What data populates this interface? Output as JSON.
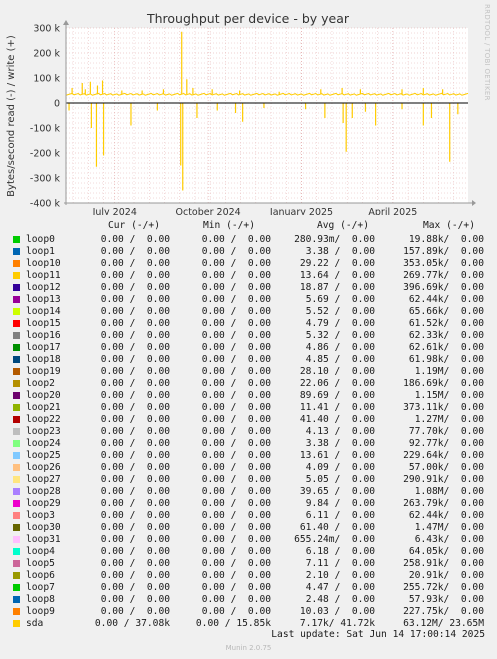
{
  "chart_data": {
    "type": "line",
    "title": "Throughput per device - by year",
    "ylabel": "Bytes/second read (-) / write (+)",
    "ylim": [
      -400000,
      300000
    ],
    "yticks": [
      {
        "value": 300000,
        "label": "300 k"
      },
      {
        "value": 200000,
        "label": "200 k"
      },
      {
        "value": 100000,
        "label": "100 k"
      },
      {
        "value": 0,
        "label": "0"
      },
      {
        "value": -100000,
        "label": "-100 k"
      },
      {
        "value": -200000,
        "label": "-200 k"
      },
      {
        "value": -300000,
        "label": "-300 k"
      },
      {
        "value": -400000,
        "label": "-400 k"
      }
    ],
    "xlim": [
      "2024-05-14",
      "2025-06-14"
    ],
    "xticks": [
      {
        "value": "2024-07-01",
        "label": "July 2024"
      },
      {
        "value": "2024-10-01",
        "label": "October 2024"
      },
      {
        "value": "2025-01-01",
        "label": "January 2025"
      },
      {
        "value": "2025-04-01",
        "label": "April 2025"
      }
    ],
    "grid": true,
    "series": [
      {
        "name": "sda",
        "color": "#ffcc00",
        "write_baseline": 35000,
        "write_spikes": [
          {
            "date": "2024-05-20",
            "value": 60000
          },
          {
            "date": "2024-05-30",
            "value": 80000
          },
          {
            "date": "2024-06-02",
            "value": 55000
          },
          {
            "date": "2024-06-07",
            "value": 85000
          },
          {
            "date": "2024-06-14",
            "value": 70000
          },
          {
            "date": "2024-06-19",
            "value": 90000
          },
          {
            "date": "2024-07-08",
            "value": 50000
          },
          {
            "date": "2024-07-28",
            "value": 50000
          },
          {
            "date": "2024-08-18",
            "value": 55000
          },
          {
            "date": "2024-09-05",
            "value": 285000
          },
          {
            "date": "2024-09-10",
            "value": 95000
          },
          {
            "date": "2024-09-16",
            "value": 60000
          },
          {
            "date": "2024-10-05",
            "value": 55000
          },
          {
            "date": "2024-11-01",
            "value": 50000
          },
          {
            "date": "2024-12-10",
            "value": 45000
          },
          {
            "date": "2025-01-20",
            "value": 55000
          },
          {
            "date": "2025-02-10",
            "value": 60000
          },
          {
            "date": "2025-02-28",
            "value": 55000
          },
          {
            "date": "2025-04-10",
            "value": 55000
          },
          {
            "date": "2025-05-01",
            "value": 60000
          },
          {
            "date": "2025-05-20",
            "value": 55000
          }
        ],
        "read_spikes": [
          {
            "date": "2024-05-17",
            "value": -30000
          },
          {
            "date": "2024-06-08",
            "value": -100000
          },
          {
            "date": "2024-06-13",
            "value": -255000
          },
          {
            "date": "2024-06-20",
            "value": -210000
          },
          {
            "date": "2024-07-17",
            "value": -90000
          },
          {
            "date": "2024-08-12",
            "value": -30000
          },
          {
            "date": "2024-09-04",
            "value": -250000
          },
          {
            "date": "2024-09-06",
            "value": -350000
          },
          {
            "date": "2024-09-20",
            "value": -60000
          },
          {
            "date": "2024-10-10",
            "value": -30000
          },
          {
            "date": "2024-10-28",
            "value": -40000
          },
          {
            "date": "2024-11-04",
            "value": -75000
          },
          {
            "date": "2024-11-25",
            "value": -20000
          },
          {
            "date": "2025-01-05",
            "value": -25000
          },
          {
            "date": "2025-01-24",
            "value": -60000
          },
          {
            "date": "2025-02-11",
            "value": -80000
          },
          {
            "date": "2025-02-14",
            "value": -195000
          },
          {
            "date": "2025-02-20",
            "value": -60000
          },
          {
            "date": "2025-03-05",
            "value": -35000
          },
          {
            "date": "2025-03-15",
            "value": -90000
          },
          {
            "date": "2025-04-10",
            "value": -25000
          },
          {
            "date": "2025-05-01",
            "value": -90000
          },
          {
            "date": "2025-05-09",
            "value": -60000
          },
          {
            "date": "2025-05-27",
            "value": -235000
          },
          {
            "date": "2025-06-04",
            "value": -45000
          }
        ]
      }
    ]
  },
  "side_label": "RRDTOOL / TOBI OETIKER",
  "legend": {
    "headers": {
      "cur": "Cur (-/+)",
      "min": "Min (-/+)",
      "avg": "Avg (-/+)",
      "max": "Max (-/+)"
    },
    "rows": [
      {
        "name": "loop0",
        "color": "#00cc00",
        "cur": "0.00 /  0.00",
        "min": "0.00 /  0.00",
        "avg": "280.93m/  0.00",
        "max": "19.88k/  0.00"
      },
      {
        "name": "loop1",
        "color": "#0066b3",
        "cur": "0.00 /  0.00",
        "min": "0.00 /  0.00",
        "avg": "3.38 /  0.00",
        "max": "157.89k/  0.00"
      },
      {
        "name": "loop10",
        "color": "#ff8000",
        "cur": "0.00 /  0.00",
        "min": "0.00 /  0.00",
        "avg": "29.22 /  0.00",
        "max": "353.05k/  0.00"
      },
      {
        "name": "loop11",
        "color": "#ffcc00",
        "cur": "0.00 /  0.00",
        "min": "0.00 /  0.00",
        "avg": "13.64 /  0.00",
        "max": "269.77k/  0.00"
      },
      {
        "name": "loop12",
        "color": "#330099",
        "cur": "0.00 /  0.00",
        "min": "0.00 /  0.00",
        "avg": "18.87 /  0.00",
        "max": "396.69k/  0.00"
      },
      {
        "name": "loop13",
        "color": "#990099",
        "cur": "0.00 /  0.00",
        "min": "0.00 /  0.00",
        "avg": "5.69 /  0.00",
        "max": "62.44k/  0.00"
      },
      {
        "name": "loop14",
        "color": "#ccff00",
        "cur": "0.00 /  0.00",
        "min": "0.00 /  0.00",
        "avg": "5.52 /  0.00",
        "max": "65.66k/  0.00"
      },
      {
        "name": "loop15",
        "color": "#ff0000",
        "cur": "0.00 /  0.00",
        "min": "0.00 /  0.00",
        "avg": "4.79 /  0.00",
        "max": "61.52k/  0.00"
      },
      {
        "name": "loop16",
        "color": "#808080",
        "cur": "0.00 /  0.00",
        "min": "0.00 /  0.00",
        "avg": "5.32 /  0.00",
        "max": "62.33k/  0.00"
      },
      {
        "name": "loop17",
        "color": "#008f00",
        "cur": "0.00 /  0.00",
        "min": "0.00 /  0.00",
        "avg": "4.86 /  0.00",
        "max": "62.61k/  0.00"
      },
      {
        "name": "loop18",
        "color": "#00487d",
        "cur": "0.00 /  0.00",
        "min": "0.00 /  0.00",
        "avg": "4.85 /  0.00",
        "max": "61.98k/  0.00"
      },
      {
        "name": "loop19",
        "color": "#b35a00",
        "cur": "0.00 /  0.00",
        "min": "0.00 /  0.00",
        "avg": "28.10 /  0.00",
        "max": "1.19M/  0.00"
      },
      {
        "name": "loop2",
        "color": "#b38f00",
        "cur": "0.00 /  0.00",
        "min": "0.00 /  0.00",
        "avg": "22.06 /  0.00",
        "max": "186.69k/  0.00"
      },
      {
        "name": "loop20",
        "color": "#6b006b",
        "cur": "0.00 /  0.00",
        "min": "0.00 /  0.00",
        "avg": "89.69 /  0.00",
        "max": "1.15M/  0.00"
      },
      {
        "name": "loop21",
        "color": "#8fb300",
        "cur": "0.00 /  0.00",
        "min": "0.00 /  0.00",
        "avg": "11.41 /  0.00",
        "max": "373.11k/  0.00"
      },
      {
        "name": "loop22",
        "color": "#b30000",
        "cur": "0.00 /  0.00",
        "min": "0.00 /  0.00",
        "avg": "41.40 /  0.00",
        "max": "1.27M/  0.00"
      },
      {
        "name": "loop23",
        "color": "#bebebe",
        "cur": "0.00 /  0.00",
        "min": "0.00 /  0.00",
        "avg": "4.13 /  0.00",
        "max": "77.70k/  0.00"
      },
      {
        "name": "loop24",
        "color": "#80ff80",
        "cur": "0.00 /  0.00",
        "min": "0.00 /  0.00",
        "avg": "3.38 /  0.00",
        "max": "92.77k/  0.00"
      },
      {
        "name": "loop25",
        "color": "#80c9ff",
        "cur": "0.00 /  0.00",
        "min": "0.00 /  0.00",
        "avg": "13.61 /  0.00",
        "max": "229.64k/  0.00"
      },
      {
        "name": "loop26",
        "color": "#ffc080",
        "cur": "0.00 /  0.00",
        "min": "0.00 /  0.00",
        "avg": "4.09 /  0.00",
        "max": "57.00k/  0.00"
      },
      {
        "name": "loop27",
        "color": "#ffe680",
        "cur": "0.00 /  0.00",
        "min": "0.00 /  0.00",
        "avg": "5.05 /  0.00",
        "max": "290.91k/  0.00"
      },
      {
        "name": "loop28",
        "color": "#aa80ff",
        "cur": "0.00 /  0.00",
        "min": "0.00 /  0.00",
        "avg": "39.65 /  0.00",
        "max": "1.08M/  0.00"
      },
      {
        "name": "loop29",
        "color": "#ee00cc",
        "cur": "0.00 /  0.00",
        "min": "0.00 /  0.00",
        "avg": "9.84 /  0.00",
        "max": "263.79k/  0.00"
      },
      {
        "name": "loop3",
        "color": "#ff8080",
        "cur": "0.00 /  0.00",
        "min": "0.00 /  0.00",
        "avg": "6.11 /  0.00",
        "max": "62.44k/  0.00"
      },
      {
        "name": "loop30",
        "color": "#666600",
        "cur": "0.00 /  0.00",
        "min": "0.00 /  0.00",
        "avg": "61.40 /  0.00",
        "max": "1.47M/  0.00"
      },
      {
        "name": "loop31",
        "color": "#ffbfff",
        "cur": "0.00 /  0.00",
        "min": "0.00 /  0.00",
        "avg": "655.24m/  0.00",
        "max": "6.43k/  0.00"
      },
      {
        "name": "loop4",
        "color": "#00ffcc",
        "cur": "0.00 /  0.00",
        "min": "0.00 /  0.00",
        "avg": "6.18 /  0.00",
        "max": "64.05k/  0.00"
      },
      {
        "name": "loop5",
        "color": "#cc6699",
        "cur": "0.00 /  0.00",
        "min": "0.00 /  0.00",
        "avg": "7.11 /  0.00",
        "max": "258.91k/  0.00"
      },
      {
        "name": "loop6",
        "color": "#999900",
        "cur": "0.00 /  0.00",
        "min": "0.00 /  0.00",
        "avg": "2.10 /  0.00",
        "max": "20.91k/  0.00"
      },
      {
        "name": "loop7",
        "color": "#00cc00",
        "cur": "0.00 /  0.00",
        "min": "0.00 /  0.00",
        "avg": "4.47 /  0.00",
        "max": "255.72k/  0.00"
      },
      {
        "name": "loop8",
        "color": "#0066b3",
        "cur": "0.00 /  0.00",
        "min": "0.00 /  0.00",
        "avg": "2.48 /  0.00",
        "max": "57.93k/  0.00"
      },
      {
        "name": "loop9",
        "color": "#ff8000",
        "cur": "0.00 /  0.00",
        "min": "0.00 /  0.00",
        "avg": "10.03 /  0.00",
        "max": "227.75k/  0.00"
      },
      {
        "name": "sda",
        "color": "#ffcc00",
        "cur": "0.00 / 37.08k",
        "min": "0.00 / 15.85k",
        "avg": "7.17k/ 41.72k",
        "max": "63.12M/ 23.65M"
      }
    ]
  },
  "footer": {
    "last_update": "Last update: Sat Jun 14 17:00:14 2025",
    "munin": "Munin 2.0.75"
  }
}
